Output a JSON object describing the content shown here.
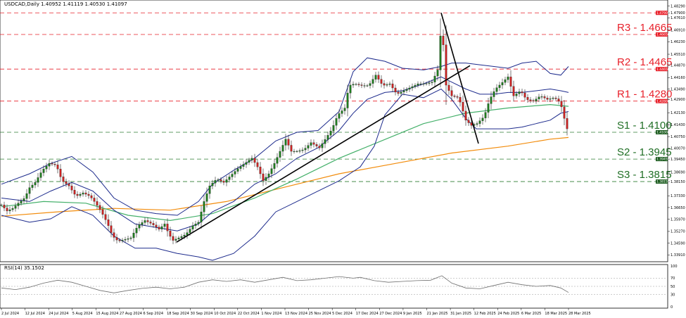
{
  "chart_data": {
    "type": "candlestick",
    "symbol_header": "USDCAD,Daily  1.40952 1.41119 1.40530 1.41097",
    "rsi_header": "RSI(14) 35.1502",
    "y_ticks": [
      "1.48290",
      "1.47900",
      "1.47610",
      "1.46910",
      "1.46230",
      "1.45510",
      "1.44870",
      "1.44160",
      "1.43490",
      "1.42900",
      "1.42130",
      "1.41430",
      "1.40750",
      "1.40070",
      "1.39450",
      "1.38690",
      "1.38150",
      "1.37330",
      "1.36650",
      "1.35970",
      "1.35270",
      "1.34590",
      "1.33910"
    ],
    "rsi_ticks": [
      "100",
      "70",
      "50",
      "30",
      "0"
    ],
    "x_labels": [
      "2 Jul 2024",
      "12 Jul 2024",
      "24 Jul 2024",
      "5 Aug 2024",
      "15 Aug 2024",
      "27 Aug 2024",
      "6 Sep 2024",
      "18 Sep 2024",
      "30 Sep 2024",
      "10 Oct 2024",
      "22 Oct 2024",
      "1 Nov 2024",
      "13 Nov 2024",
      "25 Nov 2024",
      "5 Dec 2024",
      "17 Dec 2024",
      "27 Dec 2024",
      "9 Jan 2025",
      "21 Jan 2025",
      "31 Jan 2025",
      "12 Feb 2025",
      "24 Feb 2025",
      "6 Mar 2025",
      "18 Mar 2025",
      "28 Mar 2025"
    ],
    "ylim": [
      1.336,
      1.4848
    ],
    "levels": [
      {
        "label": "R3 - 1.4665",
        "value": 1.4665,
        "tag": "1.46650",
        "kind": "resistance"
      },
      {
        "label": "R2 - 1.4465",
        "value": 1.4465,
        "tag": "1.44650",
        "kind": "resistance"
      },
      {
        "label": "R1 - 1.4280",
        "value": 1.428,
        "tag": "1.42800",
        "kind": "resistance"
      },
      {
        "label": "S1 - 1.4100",
        "value": 1.41,
        "tag": "1.41000",
        "kind": "support"
      },
      {
        "label": "S2 - 1.3945",
        "value": 1.3945,
        "tag": "1.39450",
        "kind": "support"
      },
      {
        "label": "S3 - 1.3815",
        "value": 1.3815,
        "tag": "1.38150",
        "kind": "support"
      }
    ],
    "top_level": {
      "value": 1.479,
      "tag": "1.47900"
    },
    "close_path": [
      [
        0,
        1.368
      ],
      [
        8,
        1.3645
      ],
      [
        16,
        1.366
      ],
      [
        24,
        1.369
      ],
      [
        33,
        1.372
      ],
      [
        40,
        1.378
      ],
      [
        48,
        1.381
      ],
      [
        58,
        1.388
      ],
      [
        68,
        1.392
      ],
      [
        78,
        1.391
      ],
      [
        86,
        1.382
      ],
      [
        96,
        1.379
      ],
      [
        106,
        1.373
      ],
      [
        116,
        1.375
      ],
      [
        126,
        1.373
      ],
      [
        134,
        1.369
      ],
      [
        142,
        1.364
      ],
      [
        150,
        1.358
      ],
      [
        158,
        1.35
      ],
      [
        166,
        1.347
      ],
      [
        175,
        1.348
      ],
      [
        184,
        1.349
      ],
      [
        194,
        1.356
      ],
      [
        204,
        1.359
      ],
      [
        214,
        1.357
      ],
      [
        224,
        1.354
      ],
      [
        232,
        1.357
      ],
      [
        238,
        1.351
      ],
      [
        244,
        1.3475
      ],
      [
        252,
        1.349
      ],
      [
        262,
        1.351
      ],
      [
        272,
        1.356
      ],
      [
        280,
        1.358
      ],
      [
        288,
        1.37
      ],
      [
        296,
        1.379
      ],
      [
        306,
        1.383
      ],
      [
        316,
        1.381
      ],
      [
        326,
        1.385
      ],
      [
        336,
        1.389
      ],
      [
        346,
        1.392
      ],
      [
        356,
        1.395
      ],
      [
        364,
        1.39
      ],
      [
        372,
        1.382
      ],
      [
        380,
        1.386
      ],
      [
        388,
        1.392
      ],
      [
        396,
        1.399
      ],
      [
        404,
        1.406
      ],
      [
        412,
        1.399
      ],
      [
        420,
        1.399
      ],
      [
        430,
        1.4
      ],
      [
        440,
        1.404
      ],
      [
        452,
        1.401
      ],
      [
        462,
        1.407
      ],
      [
        470,
        1.412
      ],
      [
        478,
        1.42
      ],
      [
        488,
        1.424
      ],
      [
        494,
        1.437
      ],
      [
        502,
        1.438
      ],
      [
        512,
        1.437
      ],
      [
        522,
        1.437
      ],
      [
        532,
        1.443
      ],
      [
        542,
        1.437
      ],
      [
        552,
        1.438
      ],
      [
        562,
        1.432
      ],
      [
        572,
        1.434
      ],
      [
        582,
        1.436
      ],
      [
        592,
        1.438
      ],
      [
        602,
        1.438
      ],
      [
        612,
        1.439
      ],
      [
        620,
        1.446
      ],
      [
        626,
        1.4755
      ],
      [
        631,
        1.438
      ],
      [
        640,
        1.431
      ],
      [
        650,
        1.43
      ],
      [
        660,
        1.417
      ],
      [
        668,
        1.414
      ],
      [
        676,
        1.415
      ],
      [
        686,
        1.419
      ],
      [
        694,
        1.429
      ],
      [
        702,
        1.435
      ],
      [
        710,
        1.438
      ],
      [
        720,
        1.442
      ],
      [
        728,
        1.431
      ],
      [
        738,
        1.434
      ],
      [
        746,
        1.429
      ],
      [
        756,
        1.428
      ],
      [
        766,
        1.431
      ],
      [
        776,
        1.429
      ],
      [
        786,
        1.43
      ],
      [
        792,
        1.428
      ],
      [
        798,
        1.423
      ],
      [
        802,
        1.413
      ],
      [
        806,
        1.411
      ]
    ],
    "sma100": [
      [
        0,
        1.367
      ],
      [
        60,
        1.37
      ],
      [
        120,
        1.369
      ],
      [
        180,
        1.362
      ],
      [
        240,
        1.359
      ],
      [
        300,
        1.363
      ],
      [
        360,
        1.372
      ],
      [
        420,
        1.383
      ],
      [
        480,
        1.395
      ],
      [
        540,
        1.405
      ],
      [
        600,
        1.415
      ],
      [
        660,
        1.421
      ],
      [
        720,
        1.424
      ],
      [
        780,
        1.426
      ],
      [
        806,
        1.425
      ]
    ],
    "sma200": [
      [
        0,
        1.3615
      ],
      [
        80,
        1.364
      ],
      [
        160,
        1.366
      ],
      [
        240,
        1.365
      ],
      [
        320,
        1.37
      ],
      [
        400,
        1.378
      ],
      [
        480,
        1.386
      ],
      [
        560,
        1.392
      ],
      [
        640,
        1.398
      ],
      [
        720,
        1.402
      ],
      [
        780,
        1.406
      ],
      [
        806,
        1.407
      ]
    ],
    "bb_upper": [
      [
        0,
        1.38
      ],
      [
        40,
        1.386
      ],
      [
        70,
        1.392
      ],
      [
        100,
        1.396
      ],
      [
        130,
        1.387
      ],
      [
        160,
        1.372
      ],
      [
        190,
        1.365
      ],
      [
        220,
        1.363
      ],
      [
        250,
        1.362
      ],
      [
        280,
        1.37
      ],
      [
        300,
        1.38
      ],
      [
        330,
        1.388
      ],
      [
        360,
        1.395
      ],
      [
        390,
        1.405
      ],
      [
        420,
        1.41
      ],
      [
        450,
        1.411
      ],
      [
        480,
        1.422
      ],
      [
        500,
        1.445
      ],
      [
        520,
        1.453
      ],
      [
        545,
        1.451
      ],
      [
        570,
        1.447
      ],
      [
        600,
        1.446
      ],
      [
        625,
        1.448
      ],
      [
        640,
        1.45
      ],
      [
        660,
        1.45
      ],
      [
        680,
        1.449
      ],
      [
        700,
        1.448
      ],
      [
        720,
        1.447
      ],
      [
        740,
        1.45
      ],
      [
        760,
        1.451
      ],
      [
        780,
        1.444
      ],
      [
        795,
        1.443
      ],
      [
        806,
        1.448
      ]
    ],
    "bb_mid": [
      [
        0,
        1.372
      ],
      [
        40,
        1.37
      ],
      [
        70,
        1.376
      ],
      [
        100,
        1.381
      ],
      [
        130,
        1.376
      ],
      [
        160,
        1.365
      ],
      [
        190,
        1.357
      ],
      [
        220,
        1.355
      ],
      [
        250,
        1.353
      ],
      [
        280,
        1.357
      ],
      [
        300,
        1.364
      ],
      [
        330,
        1.37
      ],
      [
        360,
        1.38
      ],
      [
        390,
        1.386
      ],
      [
        420,
        1.395
      ],
      [
        450,
        1.401
      ],
      [
        480,
        1.411
      ],
      [
        500,
        1.421
      ],
      [
        520,
        1.429
      ],
      [
        545,
        1.433
      ],
      [
        570,
        1.434
      ],
      [
        600,
        1.438
      ],
      [
        625,
        1.442
      ],
      [
        640,
        1.439
      ],
      [
        660,
        1.435
      ],
      [
        680,
        1.432
      ],
      [
        700,
        1.432
      ],
      [
        720,
        1.433
      ],
      [
        740,
        1.433
      ],
      [
        760,
        1.434
      ],
      [
        780,
        1.435
      ],
      [
        795,
        1.434
      ],
      [
        806,
        1.433
      ]
    ],
    "bb_lower": [
      [
        0,
        1.362
      ],
      [
        40,
        1.358
      ],
      [
        70,
        1.36
      ],
      [
        100,
        1.367
      ],
      [
        130,
        1.362
      ],
      [
        160,
        1.35
      ],
      [
        190,
        1.343
      ],
      [
        220,
        1.343
      ],
      [
        250,
        1.34
      ],
      [
        280,
        1.338
      ],
      [
        300,
        1.336
      ],
      [
        330,
        1.34
      ],
      [
        360,
        1.35
      ],
      [
        390,
        1.364
      ],
      [
        420,
        1.37
      ],
      [
        450,
        1.376
      ],
      [
        480,
        1.382
      ],
      [
        510,
        1.39
      ],
      [
        530,
        1.402
      ],
      [
        545,
        1.42
      ],
      [
        570,
        1.432
      ],
      [
        600,
        1.43
      ],
      [
        625,
        1.435
      ],
      [
        640,
        1.429
      ],
      [
        660,
        1.418
      ],
      [
        675,
        1.412
      ],
      [
        690,
        1.412
      ],
      [
        720,
        1.412
      ],
      [
        740,
        1.413
      ],
      [
        760,
        1.415
      ],
      [
        780,
        1.417
      ],
      [
        795,
        1.421
      ],
      [
        806,
        1.422
      ]
    ],
    "trend_up": [
      [
        249,
        1.3465
      ],
      [
        666,
        1.4485
      ]
    ],
    "trend_down": [
      [
        625,
        1.479
      ],
      [
        678,
        1.4035
      ]
    ],
    "rsi": [
      [
        0,
        46
      ],
      [
        20,
        42
      ],
      [
        40,
        48
      ],
      [
        60,
        58
      ],
      [
        80,
        65
      ],
      [
        100,
        60
      ],
      [
        120,
        50
      ],
      [
        140,
        40
      ],
      [
        160,
        34
      ],
      [
        180,
        40
      ],
      [
        200,
        45
      ],
      [
        220,
        48
      ],
      [
        240,
        44
      ],
      [
        260,
        48
      ],
      [
        280,
        60
      ],
      [
        300,
        66
      ],
      [
        320,
        62
      ],
      [
        340,
        66
      ],
      [
        360,
        60
      ],
      [
        380,
        66
      ],
      [
        400,
        72
      ],
      [
        420,
        64
      ],
      [
        440,
        66
      ],
      [
        460,
        70
      ],
      [
        480,
        74
      ],
      [
        500,
        70
      ],
      [
        510,
        72
      ],
      [
        530,
        64
      ],
      [
        550,
        60
      ],
      [
        570,
        62
      ],
      [
        590,
        64
      ],
      [
        610,
        65
      ],
      [
        626,
        76
      ],
      [
        640,
        58
      ],
      [
        660,
        46
      ],
      [
        680,
        44
      ],
      [
        700,
        52
      ],
      [
        720,
        60
      ],
      [
        740,
        54
      ],
      [
        760,
        50
      ],
      [
        780,
        52
      ],
      [
        795,
        46
      ],
      [
        806,
        35
      ]
    ],
    "colors": {
      "bull": "#1e7d1e",
      "bear": "#cc2222",
      "sma100": "#44b06a",
      "sma200": "#f28c0c",
      "bollinger": "#1c2a8c",
      "trendline": "#000000",
      "resistance": "#e8202a",
      "support": "#2e7d32",
      "rsi": "#6e6e6e"
    }
  }
}
